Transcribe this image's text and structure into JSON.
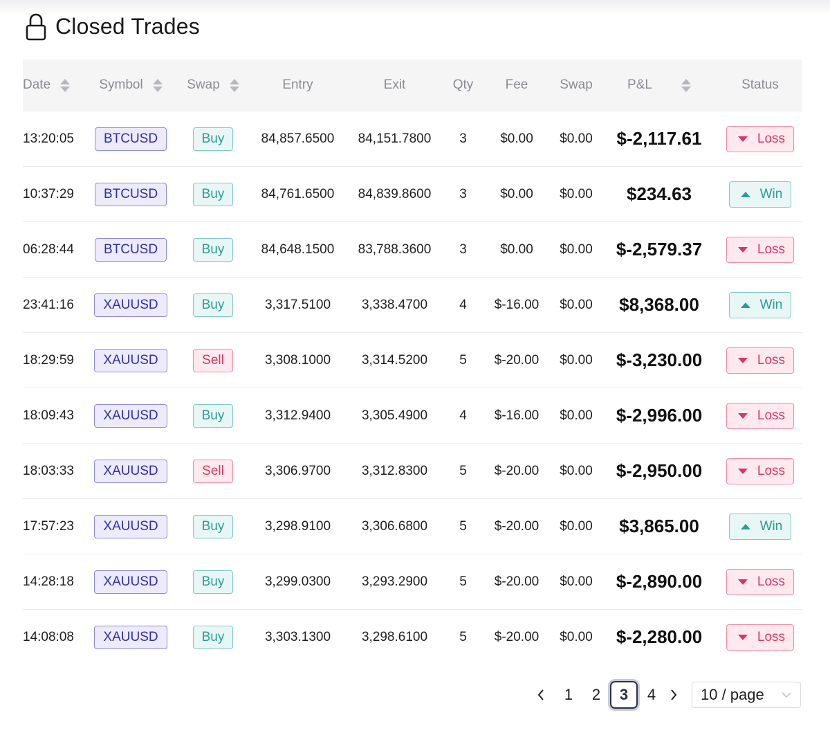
{
  "header": {
    "title": "Closed Trades",
    "icon": "lock-icon"
  },
  "columns": {
    "date": "Date",
    "symbol": "Symbol",
    "side": "Swap",
    "entry": "Entry",
    "exit": "Exit",
    "qty": "Qty",
    "fee": "Fee",
    "swap": "Swap",
    "pnl": "P&L",
    "status": "Status"
  },
  "colors": {
    "loss": "#d63863",
    "win": "#2a9d94",
    "symbol_tag": "#2f2ea8",
    "active_page_border": "#2c2f4a"
  },
  "rows": [
    {
      "date": "13:20:05",
      "symbol": "BTCUSD",
      "side": "Buy",
      "entry": "84,857.6500",
      "exit": "84,151.7800",
      "qty": "3",
      "fee": "$0.00",
      "swap": "$0.00",
      "pnl": "$-2,117.61",
      "status": "Loss"
    },
    {
      "date": "10:37:29",
      "symbol": "BTCUSD",
      "side": "Buy",
      "entry": "84,761.6500",
      "exit": "84,839.8600",
      "qty": "3",
      "fee": "$0.00",
      "swap": "$0.00",
      "pnl": "$234.63",
      "status": "Win"
    },
    {
      "date": "06:28:44",
      "symbol": "BTCUSD",
      "side": "Buy",
      "entry": "84,648.1500",
      "exit": "83,788.3600",
      "qty": "3",
      "fee": "$0.00",
      "swap": "$0.00",
      "pnl": "$-2,579.37",
      "status": "Loss"
    },
    {
      "date": "23:41:16",
      "symbol": "XAUUSD",
      "side": "Buy",
      "entry": "3,317.5100",
      "exit": "3,338.4700",
      "qty": "4",
      "fee": "$-16.00",
      "swap": "$0.00",
      "pnl": "$8,368.00",
      "status": "Win"
    },
    {
      "date": "18:29:59",
      "symbol": "XAUUSD",
      "side": "Sell",
      "entry": "3,308.1000",
      "exit": "3,314.5200",
      "qty": "5",
      "fee": "$-20.00",
      "swap": "$0.00",
      "pnl": "$-3,230.00",
      "status": "Loss"
    },
    {
      "date": "18:09:43",
      "symbol": "XAUUSD",
      "side": "Buy",
      "entry": "3,312.9400",
      "exit": "3,305.4900",
      "qty": "4",
      "fee": "$-16.00",
      "swap": "$0.00",
      "pnl": "$-2,996.00",
      "status": "Loss"
    },
    {
      "date": "18:03:33",
      "symbol": "XAUUSD",
      "side": "Sell",
      "entry": "3,306.9700",
      "exit": "3,312.8300",
      "qty": "5",
      "fee": "$-20.00",
      "swap": "$0.00",
      "pnl": "$-2,950.00",
      "status": "Loss"
    },
    {
      "date": "17:57:23",
      "symbol": "XAUUSD",
      "side": "Buy",
      "entry": "3,298.9100",
      "exit": "3,306.6800",
      "qty": "5",
      "fee": "$-20.00",
      "swap": "$0.00",
      "pnl": "$3,865.00",
      "status": "Win"
    },
    {
      "date": "14:28:18",
      "symbol": "XAUUSD",
      "side": "Buy",
      "entry": "3,299.0300",
      "exit": "3,293.2900",
      "qty": "5",
      "fee": "$-20.00",
      "swap": "$0.00",
      "pnl": "$-2,890.00",
      "status": "Loss"
    },
    {
      "date": "14:08:08",
      "symbol": "XAUUSD",
      "side": "Buy",
      "entry": "3,303.1300",
      "exit": "3,298.6100",
      "qty": "5",
      "fee": "$-20.00",
      "swap": "$0.00",
      "pnl": "$-2,280.00",
      "status": "Loss"
    }
  ],
  "pagination": {
    "pages": [
      "1",
      "2",
      "3",
      "4"
    ],
    "current": "3",
    "page_size": "10 / page"
  }
}
